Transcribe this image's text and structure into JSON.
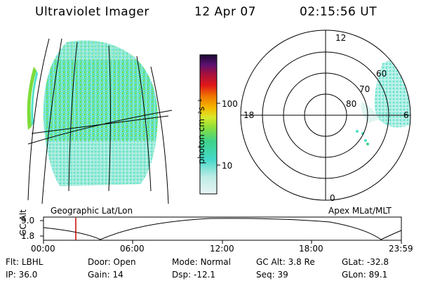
{
  "header": {
    "instrument": "Ultraviolet Imager",
    "date": "12 Apr 07",
    "time": "02:15:56 UT"
  },
  "left_panel": {
    "caption": "Geographic Lat/Lon"
  },
  "colorbar": {
    "label": "photon cm⁻²s⁻¹",
    "ticks": [
      "100",
      "10"
    ]
  },
  "polar_plot": {
    "caption": "Apex MLat/MLT",
    "mlt_labels": {
      "top": "12",
      "right": "6",
      "bottom": "0",
      "left": "18"
    },
    "lat_labels": [
      "80",
      "70",
      "60"
    ]
  },
  "altitude_plot": {
    "ylabel": "GC Alt",
    "yticks": [
      "9.0",
      "1.8"
    ],
    "xticks": [
      "00:00",
      "06:00",
      "12:00",
      "18:00",
      "23:59"
    ]
  },
  "footer": {
    "row1": [
      {
        "label": "Flt:",
        "value": "LBHL"
      },
      {
        "label": "Door:",
        "value": "Open"
      },
      {
        "label": "Mode:",
        "value": "Normal"
      },
      {
        "label": "GC Alt:",
        "value": "3.8 Re"
      },
      {
        "label": "GLat:",
        "value": "-32.8"
      }
    ],
    "row2": [
      {
        "label": "IP:",
        "value": "36.0"
      },
      {
        "label": "Gain:",
        "value": "14"
      },
      {
        "label": "Dsp:",
        "value": "-12.1"
      },
      {
        "label": "Seq:",
        "value": "39"
      },
      {
        "label": "GLon:",
        "value": "89.1"
      }
    ]
  },
  "colors": {
    "aurora_cyan": "#4fe0c8",
    "aurora_green": "#7ddc3a",
    "pale": "#d8f2ee",
    "marker_red": "#cc0000"
  }
}
